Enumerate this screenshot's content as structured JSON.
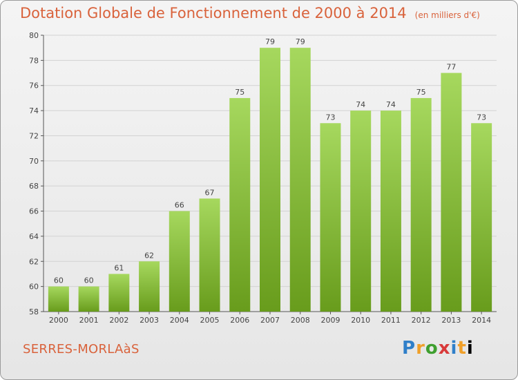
{
  "header": {
    "title": "Dotation Globale de Fonctionnement de 2000 à 2014",
    "subtitle": "(en milliers d'€)"
  },
  "footer": {
    "commune": "SERRES-MORLAàS",
    "logo": [
      "P",
      "r",
      "o",
      "x",
      "i",
      "t",
      "i"
    ]
  },
  "colors": {
    "bar_light": "#a2d45a",
    "bar_dark": "#6a9e1f",
    "title": "#d9623b"
  },
  "chart_data": {
    "type": "bar",
    "title": "Dotation Globale de Fonctionnement de 2000 à 2014",
    "subtitle": "(en milliers d'€)",
    "categories": [
      "2000",
      "2001",
      "2002",
      "2003",
      "2004",
      "2005",
      "2006",
      "2007",
      "2008",
      "2009",
      "2010",
      "2011",
      "2012",
      "2013",
      "2014"
    ],
    "values": [
      60,
      60,
      61,
      62,
      66,
      67,
      75,
      79,
      79,
      73,
      74,
      74,
      75,
      77,
      73
    ],
    "ylim": [
      58,
      80
    ],
    "yticks": [
      58,
      60,
      62,
      64,
      66,
      68,
      70,
      72,
      74,
      76,
      78,
      80
    ],
    "grid": true
  }
}
